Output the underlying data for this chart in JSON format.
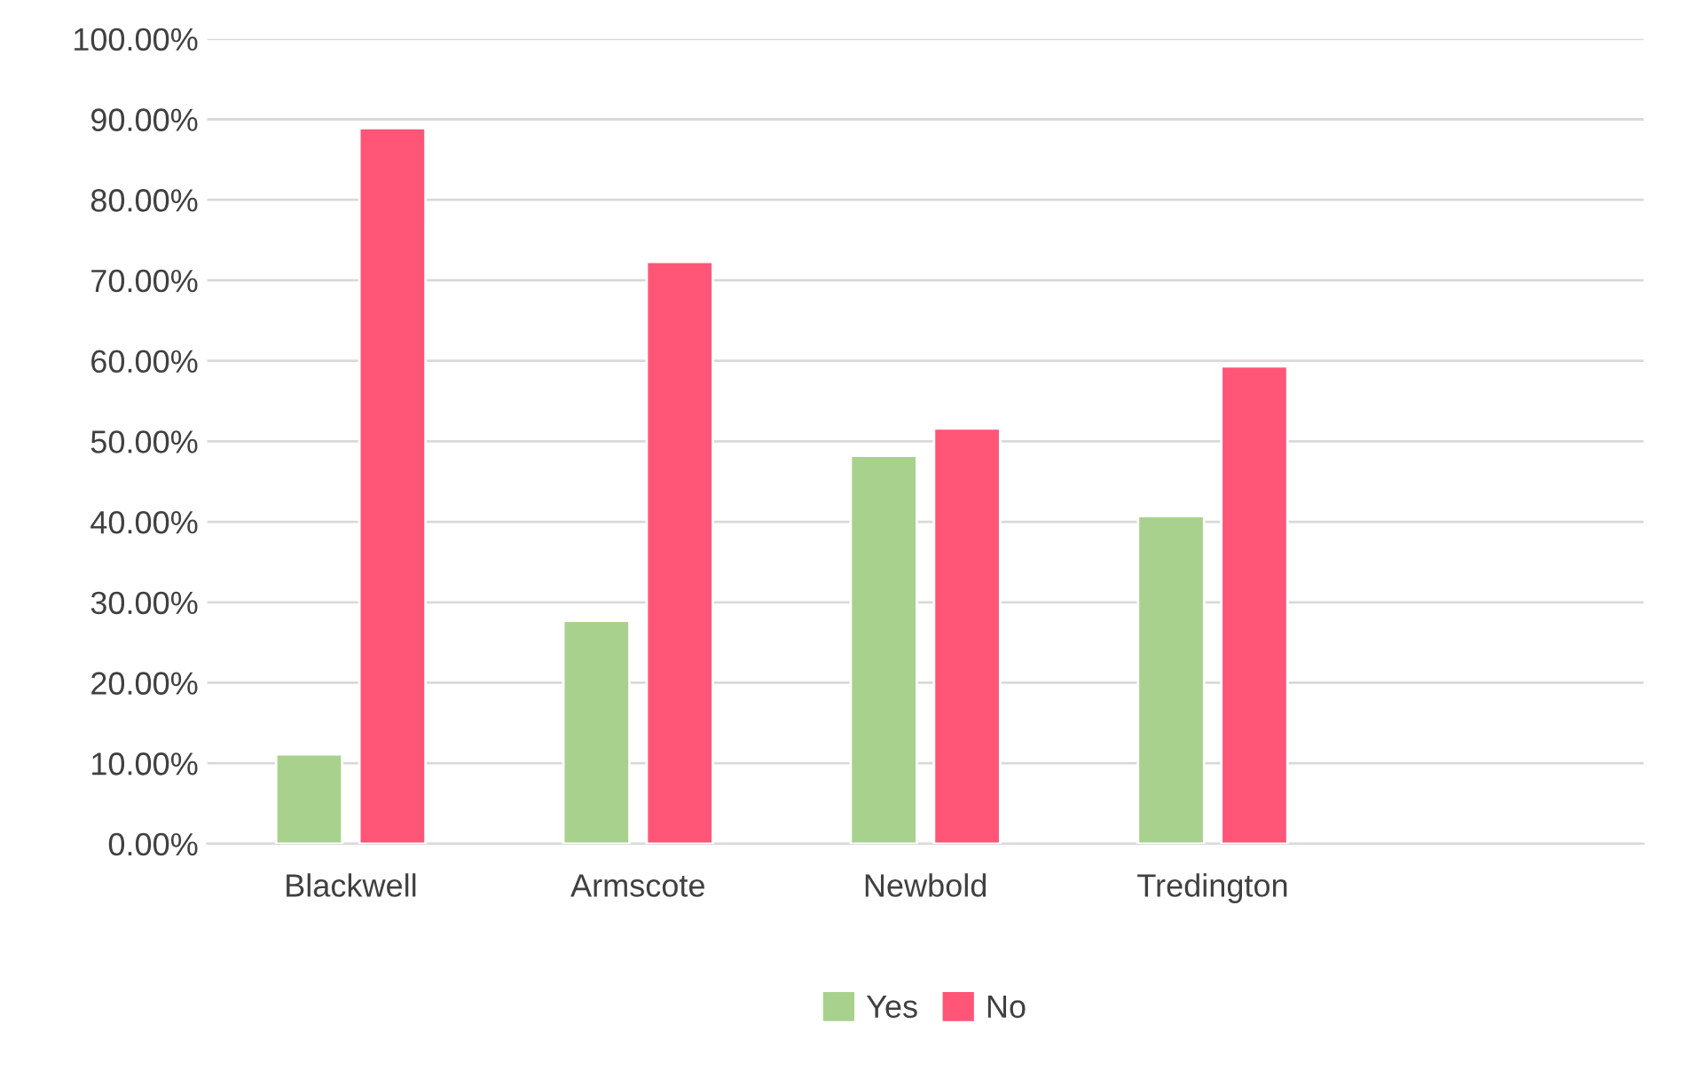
{
  "chart_data": {
    "type": "bar",
    "categories": [
      "Blackwell",
      "Armscote",
      "Newbold",
      "Tredington",
      null
    ],
    "series": [
      {
        "name": "Yes",
        "color": "#a9d18e",
        "values": [
          11.1,
          27.7,
          48.2,
          40.7,
          null
        ]
      },
      {
        "name": "No",
        "color": "#ff5577",
        "values": [
          88.9,
          72.3,
          51.6,
          59.3,
          null
        ]
      }
    ],
    "ylim": [
      0,
      100
    ],
    "yticks": [
      {
        "value": 0,
        "label": "0.00%"
      },
      {
        "value": 10,
        "label": "10.00%"
      },
      {
        "value": 20,
        "label": "20.00%"
      },
      {
        "value": 30,
        "label": "30.00%"
      },
      {
        "value": 40,
        "label": "40.00%"
      },
      {
        "value": 50,
        "label": "50.00%"
      },
      {
        "value": 60,
        "label": "60.00%"
      },
      {
        "value": 70,
        "label": "70.00%"
      },
      {
        "value": 80,
        "label": "80.00%"
      },
      {
        "value": 90,
        "label": "90.00%"
      },
      {
        "value": 100,
        "label": "100.00%"
      }
    ],
    "grid": "y",
    "legend": "bottom"
  }
}
